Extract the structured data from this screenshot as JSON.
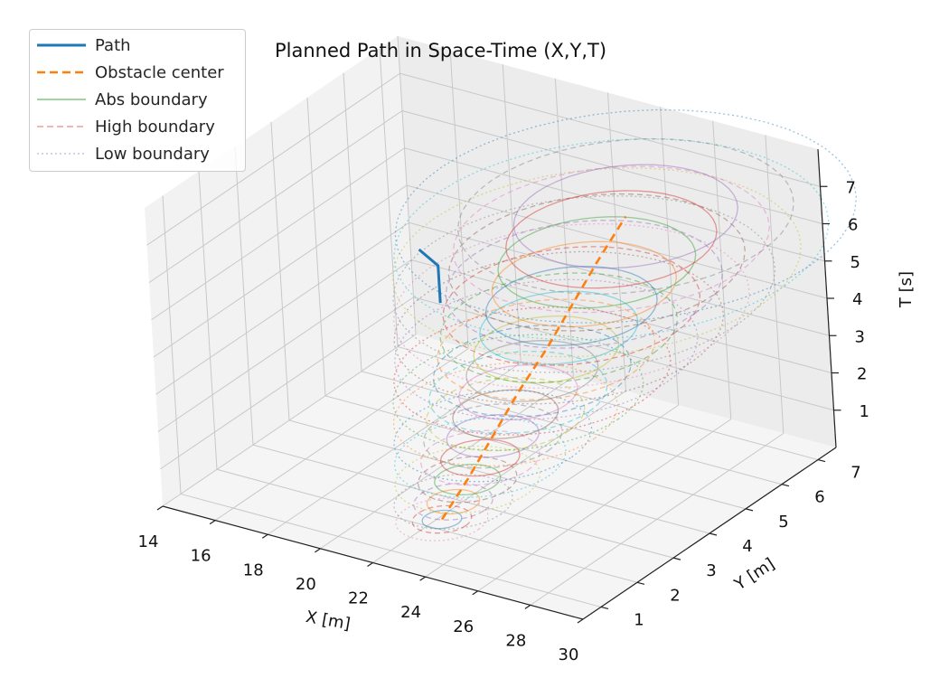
{
  "chart_data": {
    "type": "line",
    "title": "Planned Path in Space-Time (X,Y,T)",
    "xlabel": "X [m]",
    "ylabel": "Y [m]",
    "zlabel": "T [s]",
    "xlim": [
      14,
      30
    ],
    "ylim": [
      0.5,
      7.5
    ],
    "zlim": [
      0,
      8
    ],
    "x_ticks": [
      "14",
      "16",
      "18",
      "20",
      "22",
      "24",
      "26",
      "28",
      "30"
    ],
    "y_ticks": [
      "1",
      "2",
      "3",
      "4",
      "5",
      "6",
      "7"
    ],
    "z_ticks": [
      "1",
      "2",
      "3",
      "4",
      "5",
      "6",
      "7"
    ],
    "grid": true,
    "legend_position": "top-left",
    "series": [
      {
        "name": "Path",
        "style": "solid",
        "color": "#1f77b4",
        "points": [
          [
            15.9,
            6.9,
            1.6
          ],
          [
            15.9,
            6.9,
            2.6
          ],
          [
            15.2,
            6.9,
            2.9
          ]
        ]
      },
      {
        "name": "Obstacle center",
        "style": "dashed",
        "color": "#ff7f0e",
        "points": [
          [
            22.3,
            2.2,
            0.1
          ],
          [
            22.8,
            2.6,
            1.0
          ],
          [
            23.3,
            3.0,
            2.0
          ],
          [
            23.8,
            3.4,
            3.0
          ],
          [
            24.4,
            3.8,
            4.0
          ],
          [
            24.9,
            4.2,
            5.0
          ],
          [
            25.4,
            4.6,
            6.0
          ],
          [
            25.9,
            5.1,
            7.0
          ]
        ]
      },
      {
        "name": "Abs boundary",
        "style": "solid",
        "color": "#2ca02c"
      },
      {
        "name": "High boundary",
        "style": "dashed",
        "color": "#d62728"
      },
      {
        "name": "Low boundary",
        "style": "dotted",
        "color": "#9467bd"
      }
    ],
    "boundary_rings": {
      "times": [
        0.1,
        0.5,
        1.0,
        1.5,
        2.0,
        2.5,
        3.0,
        3.5,
        4.0,
        4.5,
        5.0,
        5.5,
        6.0,
        6.5,
        7.0
      ],
      "abs_radius": [
        0.6,
        0.8,
        1.0,
        1.2,
        1.4,
        1.6,
        1.8,
        2.0,
        2.2,
        2.4,
        2.6,
        2.8,
        3.0,
        3.2,
        3.4
      ],
      "high_radius": [
        0.9,
        1.2,
        1.5,
        1.8,
        2.1,
        2.4,
        2.7,
        3.0,
        3.3,
        3.6,
        3.9,
        4.2,
        4.5,
        4.8,
        5.1
      ],
      "low_radius": [
        1.4,
        1.8,
        2.2,
        2.6,
        3.0,
        3.4,
        3.8,
        4.2,
        4.6,
        5.0,
        5.4,
        5.8,
        6.2,
        6.6,
        7.0
      ],
      "ring_colors": [
        "#1f77b4",
        "#ff7f0e",
        "#2ca02c",
        "#d62728",
        "#9467bd",
        "#8c564b",
        "#e377c2",
        "#7f7f7f",
        "#bcbd22",
        "#17becf"
      ]
    }
  }
}
